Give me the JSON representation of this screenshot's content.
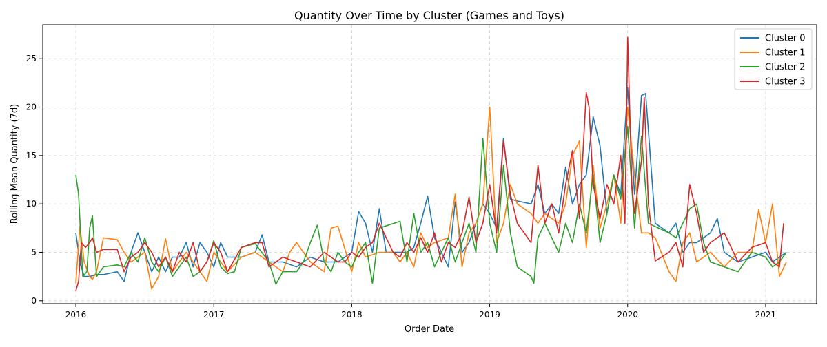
{
  "chart_data": {
    "type": "line",
    "title": "Quantity Over Time by Cluster (Games and Toys)",
    "xlabel": "Order Date",
    "ylabel": "Rolling Mean Quantity (7d)",
    "xlim": [
      2015.76,
      2021.37
    ],
    "ylim": [
      -0.3,
      28.5
    ],
    "xticks": [
      2016,
      2017,
      2018,
      2019,
      2020,
      2021
    ],
    "xtick_labels": [
      "2016",
      "2017",
      "2018",
      "2019",
      "2020",
      "2021"
    ],
    "yticks": [
      0,
      5,
      10,
      15,
      20,
      25
    ],
    "ytick_labels": [
      "0",
      "5",
      "10",
      "15",
      "20",
      "25"
    ],
    "grid": true,
    "legend": {
      "position": "top-right"
    },
    "series": [
      {
        "name": "Cluster 0",
        "color": "#1f77b4",
        "x": [
          2016.0,
          2016.03,
          2016.06,
          2016.1,
          2016.15,
          2016.2,
          2016.3,
          2016.35,
          2016.4,
          2016.45,
          2016.5,
          2016.55,
          2016.6,
          2016.65,
          2016.7,
          2016.75,
          2016.8,
          2016.85,
          2016.9,
          2016.95,
          2017.0,
          2017.05,
          2017.1,
          2017.2,
          2017.3,
          2017.35,
          2017.4,
          2017.5,
          2017.6,
          2017.7,
          2017.8,
          2017.9,
          2018.0,
          2018.05,
          2018.1,
          2018.15,
          2018.2,
          2018.25,
          2018.3,
          2018.4,
          2018.45,
          2018.5,
          2018.55,
          2018.6,
          2018.7,
          2018.75,
          2018.8,
          2018.85,
          2018.9,
          2018.95,
          2019.0,
          2019.05,
          2019.1,
          2019.15,
          2019.2,
          2019.3,
          2019.35,
          2019.4,
          2019.45,
          2019.5,
          2019.55,
          2019.6,
          2019.65,
          2019.7,
          2019.75,
          2019.8,
          2019.85,
          2019.9,
          2019.95,
          2020.0,
          2020.05,
          2020.1,
          2020.13,
          2020.2,
          2020.3,
          2020.35,
          2020.4,
          2020.45,
          2020.5,
          2020.6,
          2020.65,
          2020.7,
          2020.8,
          2020.9,
          2021.0,
          2021.05,
          2021.1,
          2021.15
        ],
        "y": [
          7.0,
          4.0,
          2.5,
          2.5,
          2.7,
          2.7,
          3.0,
          2.0,
          5.0,
          7.0,
          5.0,
          3.0,
          4.5,
          3.0,
          4.5,
          4.5,
          6.0,
          3.5,
          6.0,
          5.0,
          3.5,
          6.0,
          4.5,
          4.5,
          5.0,
          6.8,
          4.0,
          4.0,
          3.5,
          4.5,
          4.0,
          4.0,
          5.0,
          9.2,
          8.0,
          5.0,
          9.5,
          5.0,
          5.0,
          5.0,
          5.5,
          8.0,
          10.8,
          6.5,
          3.5,
          10.2,
          5.0,
          6.0,
          8.0,
          10.0,
          9.0,
          7.5,
          16.8,
          10.5,
          10.3,
          10.0,
          12.0,
          9.0,
          10.0,
          9.0,
          13.8,
          10.0,
          12.0,
          13.0,
          19.0,
          16.0,
          9.0,
          13.0,
          11.0,
          22.0,
          11.0,
          21.2,
          21.4,
          8.0,
          7.0,
          8.0,
          5.0,
          6.0,
          6.0,
          7.0,
          8.5,
          5.0,
          4.0,
          4.5,
          5.0,
          4.0,
          4.5,
          5.0
        ]
      },
      {
        "name": "Cluster 1",
        "color": "#ff7f0e",
        "x": [
          2016.0,
          2016.03,
          2016.06,
          2016.1,
          2016.12,
          2016.15,
          2016.2,
          2016.3,
          2016.35,
          2016.4,
          2016.5,
          2016.55,
          2016.6,
          2016.65,
          2016.7,
          2016.75,
          2016.8,
          2016.85,
          2016.9,
          2016.95,
          2017.0,
          2017.05,
          2017.1,
          2017.2,
          2017.3,
          2017.4,
          2017.5,
          2017.55,
          2017.6,
          2017.7,
          2017.8,
          2017.85,
          2017.9,
          2018.0,
          2018.05,
          2018.1,
          2018.2,
          2018.3,
          2018.35,
          2018.4,
          2018.45,
          2018.5,
          2018.55,
          2018.6,
          2018.7,
          2018.75,
          2018.8,
          2018.85,
          2018.9,
          2018.95,
          2019.0,
          2019.05,
          2019.1,
          2019.15,
          2019.2,
          2019.3,
          2019.35,
          2019.4,
          2019.5,
          2019.55,
          2019.6,
          2019.65,
          2019.7,
          2019.75,
          2019.8,
          2019.85,
          2019.9,
          2019.95,
          2020.0,
          2020.05,
          2020.1,
          2020.15,
          2020.2,
          2020.3,
          2020.35,
          2020.4,
          2020.45,
          2020.5,
          2020.6,
          2020.7,
          2020.8,
          2020.9,
          2020.95,
          2021.0,
          2021.05,
          2021.1,
          2021.15
        ],
        "y": [
          1.8,
          7.7,
          4.0,
          2.5,
          2.2,
          3.0,
          6.5,
          6.3,
          5.0,
          4.0,
          5.0,
          1.2,
          2.5,
          6.4,
          3.0,
          4.0,
          5.0,
          4.0,
          3.0,
          2.0,
          5.0,
          4.0,
          3.0,
          4.5,
          5.0,
          4.0,
          3.0,
          5.0,
          6.0,
          4.0,
          3.0,
          7.5,
          7.7,
          3.0,
          6.0,
          4.5,
          5.0,
          5.0,
          4.0,
          5.0,
          3.5,
          7.0,
          5.5,
          6.0,
          6.5,
          11.0,
          3.5,
          7.0,
          8.0,
          10.0,
          20.0,
          6.0,
          8.0,
          12.0,
          10.0,
          9.0,
          8.0,
          9.0,
          8.0,
          10.0,
          15.0,
          16.5,
          5.5,
          14.0,
          7.5,
          10.0,
          13.0,
          8.0,
          20.0,
          13.0,
          7.0,
          7.0,
          6.5,
          3.0,
          2.0,
          6.0,
          7.0,
          4.0,
          5.0,
          3.5,
          5.0,
          5.0,
          9.4,
          6.0,
          10.0,
          2.5,
          4.0
        ]
      },
      {
        "name": "Cluster 2",
        "color": "#2ca02c",
        "x": [
          2016.0,
          2016.02,
          2016.05,
          2016.08,
          2016.1,
          2016.12,
          2016.15,
          2016.2,
          2016.25,
          2016.3,
          2016.35,
          2016.4,
          2016.45,
          2016.5,
          2016.55,
          2016.6,
          2016.65,
          2016.7,
          2016.75,
          2016.8,
          2016.85,
          2016.9,
          2016.95,
          2017.0,
          2017.05,
          2017.1,
          2017.15,
          2017.2,
          2017.3,
          2017.4,
          2017.45,
          2017.5,
          2017.6,
          2017.65,
          2017.7,
          2017.75,
          2017.8,
          2017.85,
          2017.9,
          2017.95,
          2018.0,
          2018.05,
          2018.1,
          2018.15,
          2018.2,
          2018.35,
          2018.4,
          2018.45,
          2018.5,
          2018.55,
          2018.6,
          2018.7,
          2018.75,
          2018.8,
          2018.85,
          2018.9,
          2018.95,
          2019.0,
          2019.05,
          2019.1,
          2019.15,
          2019.2,
          2019.3,
          2019.32,
          2019.35,
          2019.4,
          2019.5,
          2019.55,
          2019.6,
          2019.65,
          2019.7,
          2019.75,
          2019.8,
          2019.85,
          2019.9,
          2019.95,
          2020.0,
          2020.05,
          2020.1,
          2020.15,
          2020.3,
          2020.35,
          2020.4,
          2020.45,
          2020.5,
          2020.55,
          2020.6,
          2020.7,
          2020.8,
          2020.9,
          2021.0,
          2021.05,
          2021.1,
          2021.15
        ],
        "y": [
          13.0,
          11.0,
          2.5,
          3.0,
          7.5,
          8.8,
          2.5,
          3.5,
          3.6,
          3.7,
          3.5,
          5.0,
          4.0,
          6.5,
          4.0,
          3.0,
          4.5,
          2.5,
          3.5,
          4.5,
          2.5,
          3.0,
          4.0,
          6.2,
          3.5,
          2.8,
          3.0,
          5.5,
          5.9,
          4.0,
          1.7,
          3.0,
          3.0,
          4.0,
          6.0,
          7.8,
          4.0,
          3.0,
          5.0,
          4.0,
          3.5,
          5.0,
          6.0,
          1.8,
          7.5,
          8.2,
          4.0,
          9.0,
          5.0,
          6.0,
          3.5,
          6.5,
          4.0,
          6.0,
          8.0,
          5.0,
          16.8,
          8.0,
          5.0,
          14.0,
          7.0,
          3.5,
          2.5,
          1.8,
          6.5,
          8.0,
          5.0,
          8.0,
          6.0,
          10.0,
          7.0,
          13.0,
          6.0,
          9.0,
          13.0,
          10.5,
          18.0,
          7.5,
          17.0,
          8.0,
          7.0,
          6.5,
          8.0,
          9.5,
          10.0,
          6.0,
          4.0,
          3.5,
          3.0,
          5.0,
          4.5,
          3.5,
          4.0,
          5.0
        ]
      },
      {
        "name": "Cluster 3",
        "color": "#d62728",
        "x": [
          2016.0,
          2016.02,
          2016.04,
          2016.07,
          2016.1,
          2016.12,
          2016.15,
          2016.2,
          2016.3,
          2016.35,
          2016.4,
          2016.45,
          2016.5,
          2016.55,
          2016.6,
          2016.65,
          2016.7,
          2016.75,
          2016.8,
          2016.85,
          2016.9,
          2016.95,
          2017.0,
          2017.05,
          2017.1,
          2017.2,
          2017.3,
          2017.35,
          2017.4,
          2017.5,
          2017.6,
          2017.7,
          2017.8,
          2017.9,
          2017.95,
          2018.0,
          2018.05,
          2018.1,
          2018.15,
          2018.2,
          2018.3,
          2018.35,
          2018.4,
          2018.45,
          2018.5,
          2018.55,
          2018.6,
          2018.65,
          2018.7,
          2018.75,
          2018.8,
          2018.85,
          2018.9,
          2018.95,
          2019.0,
          2019.05,
          2019.1,
          2019.15,
          2019.2,
          2019.3,
          2019.35,
          2019.4,
          2019.45,
          2019.5,
          2019.55,
          2019.6,
          2019.65,
          2019.7,
          2019.72,
          2019.75,
          2019.8,
          2019.85,
          2019.9,
          2019.95,
          2019.98,
          2020.0,
          2020.03,
          2020.05,
          2020.1,
          2020.12,
          2020.15,
          2020.2,
          2020.3,
          2020.35,
          2020.4,
          2020.45,
          2020.5,
          2020.55,
          2020.6,
          2020.7,
          2020.8,
          2020.9,
          2021.0,
          2021.05,
          2021.1,
          2021.13
        ],
        "y": [
          1.0,
          2.0,
          6.0,
          5.5,
          6.0,
          6.5,
          5.0,
          5.3,
          5.3,
          3.0,
          4.5,
          5.0,
          6.0,
          5.0,
          3.5,
          4.5,
          3.0,
          5.0,
          4.0,
          6.0,
          3.0,
          4.0,
          6.0,
          5.0,
          3.0,
          5.5,
          6.0,
          6.0,
          3.5,
          4.5,
          4.0,
          3.5,
          5.0,
          4.0,
          4.0,
          5.0,
          4.5,
          5.5,
          6.0,
          8.0,
          5.0,
          4.5,
          6.0,
          5.0,
          6.5,
          5.0,
          7.0,
          4.0,
          6.0,
          5.5,
          7.0,
          10.7,
          6.0,
          8.0,
          12.0,
          7.0,
          16.5,
          11.0,
          8.0,
          6.0,
          14.0,
          8.0,
          10.0,
          7.0,
          12.0,
          15.5,
          8.5,
          21.5,
          20.0,
          12.0,
          8.5,
          12.0,
          10.0,
          15.0,
          8.0,
          27.2,
          12.0,
          9.0,
          14.5,
          21.0,
          10.0,
          4.1,
          5.0,
          6.0,
          3.5,
          12.0,
          9.0,
          5.0,
          6.0,
          7.0,
          4.0,
          5.5,
          6.0,
          4.0,
          3.5,
          8.0
        ]
      }
    ]
  }
}
